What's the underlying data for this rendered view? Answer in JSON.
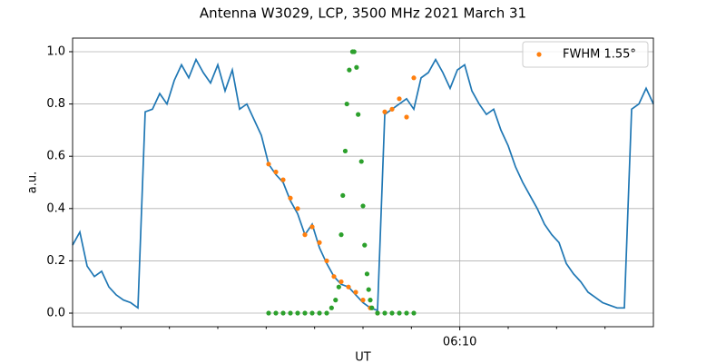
{
  "chart_data": {
    "type": "line",
    "title": "Antenna W3029, LCP, 3500 MHz 2021 March 31",
    "xlabel": "UT",
    "ylabel": "a.u.",
    "xlim": [
      "06:02",
      "06:14"
    ],
    "xticks": [
      "06:10"
    ],
    "xminorticks": [
      "06:03",
      "06:04",
      "06:05",
      "06:06",
      "06:07",
      "06:08",
      "06:09",
      "06:11",
      "06:12",
      "06:13"
    ],
    "ylim": [
      -0.052,
      1.052
    ],
    "yticks": [
      {
        "value": 0,
        "label": "0.0"
      },
      0.2,
      0.4,
      0.6,
      0.8,
      {
        "value": 1,
        "label": "1.0"
      }
    ],
    "grid": true,
    "legend": "upper right",
    "series": [
      {
        "color": "#1f77b4",
        "style": "line",
        "x": [
          "06:02:00",
          "06:02:09",
          "06:02:18",
          "06:02:27",
          "06:02:36",
          "06:02:45",
          "06:02:54",
          "06:03:03",
          "06:03:12",
          "06:03:21",
          "06:03:30",
          "06:03:39",
          "06:03:48",
          "06:03:57",
          "06:04:06",
          "06:04:15",
          "06:04:24",
          "06:04:33",
          "06:04:42",
          "06:04:51",
          "06:05:00",
          "06:05:09",
          "06:05:18",
          "06:05:27",
          "06:05:36",
          "06:05:45",
          "06:05:54",
          "06:06:03",
          "06:06:12",
          "06:06:21",
          "06:06:30",
          "06:06:39",
          "06:06:48",
          "06:06:57",
          "06:07:06",
          "06:07:15",
          "06:07:24",
          "06:07:33",
          "06:07:42",
          "06:07:51",
          "06:08:00",
          "06:08:09",
          "06:08:18",
          "06:08:27",
          "06:08:36",
          "06:08:45",
          "06:08:54",
          "06:09:03",
          "06:09:12",
          "06:09:21",
          "06:09:30",
          "06:09:39",
          "06:09:48",
          "06:09:57",
          "06:10:06",
          "06:10:15",
          "06:10:24",
          "06:10:33",
          "06:10:42",
          "06:10:51",
          "06:11:00",
          "06:11:09",
          "06:11:18",
          "06:11:27",
          "06:11:36",
          "06:11:45",
          "06:11:54",
          "06:12:03",
          "06:12:12",
          "06:12:21",
          "06:12:30",
          "06:12:39",
          "06:12:48",
          "06:12:57",
          "06:13:06",
          "06:13:15",
          "06:13:24",
          "06:13:33",
          "06:13:42",
          "06:13:51",
          "06:14:00"
        ],
        "values": [
          0.26,
          0.31,
          0.18,
          0.14,
          0.16,
          0.1,
          0.07,
          0.05,
          0.04,
          0.02,
          0.77,
          0.78,
          0.84,
          0.8,
          0.89,
          0.95,
          0.9,
          0.97,
          0.92,
          0.88,
          0.95,
          0.85,
          0.93,
          0.78,
          0.8,
          0.74,
          0.68,
          0.57,
          0.53,
          0.5,
          0.43,
          0.38,
          0.3,
          0.34,
          0.25,
          0.19,
          0.14,
          0.11,
          0.1,
          0.07,
          0.04,
          0.02,
          0.01,
          0.76,
          0.78,
          0.8,
          0.82,
          0.78,
          0.9,
          0.92,
          0.97,
          0.92,
          0.86,
          0.93,
          0.95,
          0.85,
          0.8,
          0.76,
          0.78,
          0.7,
          0.64,
          0.56,
          0.5,
          0.45,
          0.4,
          0.34,
          0.3,
          0.27,
          0.19,
          0.15,
          0.12,
          0.08,
          0.06,
          0.04,
          0.03,
          0.02,
          0.02,
          0.78,
          0.8,
          0.86,
          0.8
        ]
      },
      {
        "name": "FWHM 1.55°",
        "color": "#ff7f0e",
        "style": "dots",
        "x": [
          "06:06:03",
          "06:06:12",
          "06:06:21",
          "06:06:30",
          "06:06:39",
          "06:06:48",
          "06:06:57",
          "06:07:06",
          "06:07:15",
          "06:07:24",
          "06:07:33",
          "06:07:42",
          "06:07:51",
          "06:08:00",
          "06:08:09",
          "06:08:18",
          "06:08:27",
          "06:08:36",
          "06:08:45",
          "06:08:54",
          "06:09:03"
        ],
        "values": [
          0.57,
          0.54,
          0.51,
          0.44,
          0.4,
          0.3,
          0.33,
          0.27,
          0.2,
          0.14,
          0.12,
          0.1,
          0.08,
          0.05,
          0.02,
          0,
          0.77,
          0.78,
          0.82,
          0.75,
          0.9
        ]
      },
      {
        "color": "#2ca02c",
        "style": "dots",
        "x": [
          "06:06:03",
          "06:06:12",
          "06:06:21",
          "06:06:30",
          "06:06:39",
          "06:06:48",
          "06:06:57",
          "06:07:06",
          "06:07:15",
          "06:07:21",
          "06:07:26",
          "06:07:30",
          "06:07:33",
          "06:07:35",
          "06:07:38",
          "06:07:40",
          "06:07:43",
          "06:07:47",
          "06:07:49",
          "06:07:52",
          "06:07:54",
          "06:07:58",
          "06:08:00",
          "06:08:02",
          "06:08:05",
          "06:08:07",
          "06:08:09",
          "06:08:11",
          "06:08:18",
          "06:08:27",
          "06:08:36",
          "06:08:45",
          "06:08:54",
          "06:09:03"
        ],
        "values": [
          0,
          0,
          0,
          0,
          0,
          0,
          0,
          0,
          0,
          0.02,
          0.05,
          0.1,
          0.3,
          0.45,
          0.62,
          0.8,
          0.93,
          1.0,
          1.0,
          0.94,
          0.76,
          0.58,
          0.41,
          0.26,
          0.15,
          0.09,
          0.05,
          0.02,
          0,
          0,
          0,
          0,
          0,
          0
        ]
      }
    ]
  }
}
